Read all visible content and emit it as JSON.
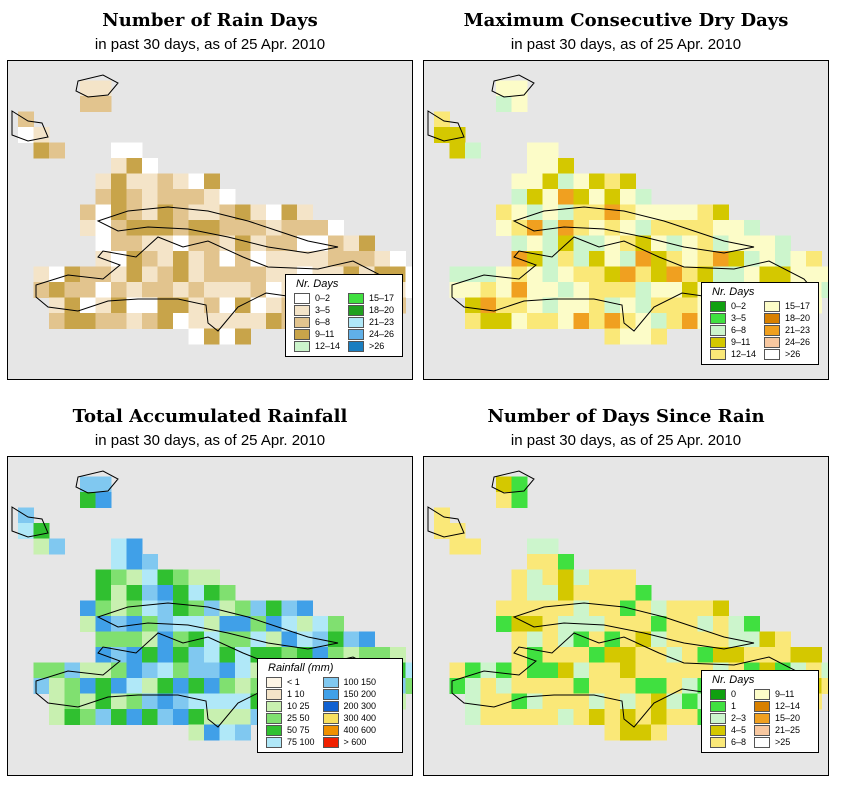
{
  "panels": [
    {
      "id": "rain-days",
      "title": "Number of Rain Days",
      "subtitle": "in past 30 days, as of  25 Apr. 2010",
      "legend_title": "Nr. Days",
      "legend": [
        {
          "label": "0–2",
          "color": "#ffffff"
        },
        {
          "label": "3–5",
          "color": "#f4e4c8"
        },
        {
          "label": "6–8",
          "color": "#e2c48e"
        },
        {
          "label": "9–11",
          "color": "#c8a44a"
        },
        {
          "label": "12–14",
          "color": "#ccf5cc"
        },
        {
          "label": "15–17",
          "color": "#40e040"
        },
        {
          "label": "18–20",
          "color": "#20a020"
        },
        {
          "label": "21–23",
          "color": "#b0e8f8"
        },
        {
          "label": "24–26",
          "color": "#60b0e8"
        },
        {
          "label": ">26",
          "color": "#1a7ec0"
        }
      ]
    },
    {
      "id": "max-dry-days",
      "title": "Maximum Consecutive Dry Days",
      "subtitle": "in past 30 days, as of  25 Apr. 2010",
      "legend_title": "Nr. Days",
      "legend": [
        {
          "label": "0–2",
          "color": "#10a010"
        },
        {
          "label": "3–5",
          "color": "#40e040"
        },
        {
          "label": "6–8",
          "color": "#ccf5cc"
        },
        {
          "label": "9–11",
          "color": "#d4c800"
        },
        {
          "label": "12–14",
          "color": "#fae878"
        },
        {
          "label": "15–17",
          "color": "#fcfcc8"
        },
        {
          "label": "18–20",
          "color": "#d88000"
        },
        {
          "label": "21–23",
          "color": "#f0a020"
        },
        {
          "label": "24–26",
          "color": "#f8c8a0"
        },
        {
          "label": ">26",
          "color": "#ffffff"
        }
      ]
    },
    {
      "id": "total-rainfall",
      "title": "Total Accumulated Rainfall",
      "subtitle": "in past 30 days, as of  25 Apr. 2010",
      "legend_title": "Rainfall (mm)",
      "legend": [
        {
          "label": "< 1",
          "color": "#fdf5e6"
        },
        {
          "label": "1    10",
          "color": "#f4e4c8"
        },
        {
          "label": "10    25",
          "color": "#c8f0b0"
        },
        {
          "label": "25    50",
          "color": "#80e070"
        },
        {
          "label": "50    75",
          "color": "#30c030"
        },
        {
          "label": "75   100",
          "color": "#b0e8f8"
        },
        {
          "label": "100   150",
          "color": "#80c8f0"
        },
        {
          "label": "150   200",
          "color": "#40a0e8"
        },
        {
          "label": "200   300",
          "color": "#1060d0"
        },
        {
          "label": "300   400",
          "color": "#f8e060"
        },
        {
          "label": "400   600",
          "color": "#f09000"
        },
        {
          "label": "> 600",
          "color": "#f02000"
        }
      ]
    },
    {
      "id": "days-since-rain",
      "title": "Number of Days Since Rain",
      "subtitle": "in past 30 days, as of  25 Apr. 2010",
      "legend_title": "Nr. Days",
      "legend": [
        {
          "label": "0",
          "color": "#10a010"
        },
        {
          "label": "1",
          "color": "#40e040"
        },
        {
          "label": "2–3",
          "color": "#ccf5cc"
        },
        {
          "label": "4–5",
          "color": "#d4c800"
        },
        {
          "label": "6–8",
          "color": "#fae878"
        },
        {
          "label": "9–11",
          "color": "#fcfcc8"
        },
        {
          "label": "12–14",
          "color": "#d88000"
        },
        {
          "label": "15–20",
          "color": "#f0a020"
        },
        {
          "label": "21–25",
          "color": "#f8c8a0"
        },
        {
          "label": ">25",
          "color": "#ffffff"
        }
      ]
    }
  ]
}
